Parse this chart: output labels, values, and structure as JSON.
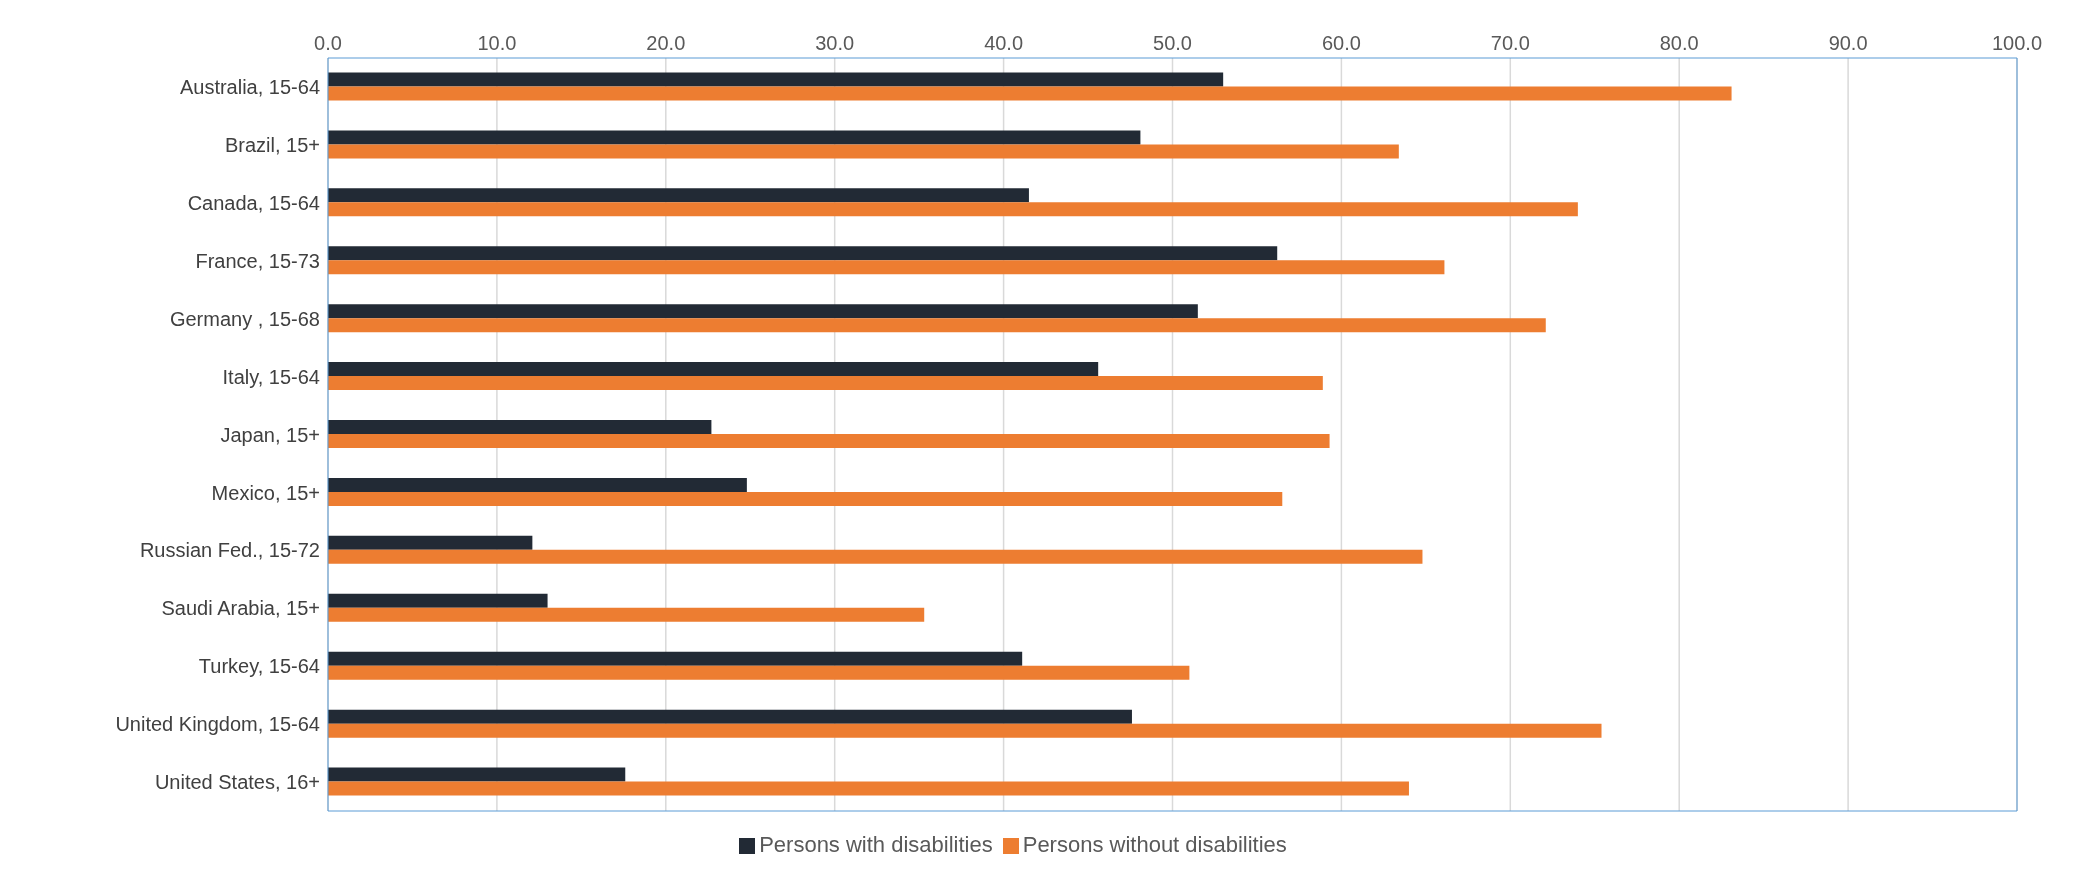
{
  "chart_data": {
    "type": "bar",
    "orientation": "horizontal",
    "categories": [
      "Australia, 15-64",
      "Brazil, 15+",
      "Canada, 15-64",
      "France, 15-73",
      "Germany , 15-68",
      "Italy, 15-64",
      "Japan, 15+",
      "Mexico, 15+",
      "Russian Fed., 15-72",
      "Saudi Arabia, 15+",
      "Turkey, 15-64",
      "United Kingdom, 15-64",
      "United States, 16+"
    ],
    "series": [
      {
        "name": "Persons with disabilities",
        "color": "#222a35",
        "values": [
          53.0,
          48.1,
          41.5,
          56.2,
          51.5,
          45.6,
          22.7,
          24.8,
          12.1,
          13.0,
          41.1,
          47.6,
          17.6
        ]
      },
      {
        "name": "Persons without disabilities",
        "color": "#ed7d31",
        "values": [
          83.1,
          63.4,
          74.0,
          66.1,
          72.1,
          58.9,
          59.3,
          56.5,
          64.8,
          35.3,
          51.0,
          75.4,
          64.0
        ]
      }
    ],
    "xlim": [
      0,
      100
    ],
    "xticks": [
      {
        "value": 0,
        "label": "0.0"
      },
      {
        "value": 10,
        "label": "10.0"
      },
      {
        "value": 20,
        "label": "20.0"
      },
      {
        "value": 30,
        "label": "30.0"
      },
      {
        "value": 40,
        "label": "40.0"
      },
      {
        "value": 50,
        "label": "50.0"
      },
      {
        "value": 60,
        "label": "60.0"
      },
      {
        "value": 70,
        "label": "70.0"
      },
      {
        "value": 80,
        "label": "80.0"
      },
      {
        "value": 90,
        "label": "90.0"
      },
      {
        "value": 100,
        "label": "100.0"
      }
    ],
    "grid": "x",
    "legend": "bottom"
  }
}
